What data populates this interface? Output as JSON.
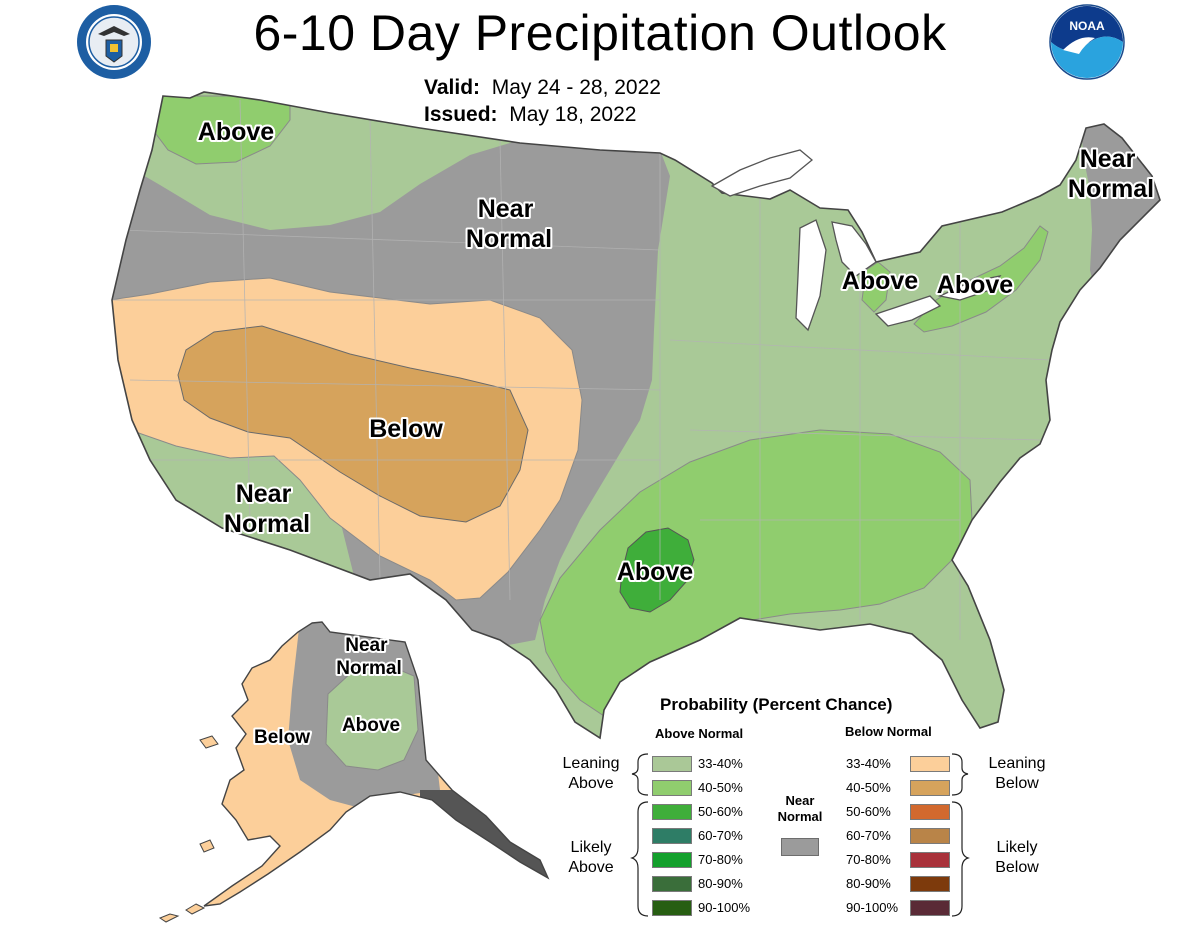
{
  "title": "6-10 Day Precipitation Outlook",
  "valid_label": "Valid:",
  "valid_value": "May 24 - 28, 2022",
  "issued_label": "Issued:",
  "issued_value": "May 18, 2022",
  "noaa_text": "NOAA",
  "region_labels": {
    "pacific_nw": "Above",
    "northern_plains": [
      "Near",
      "Normal"
    ],
    "new_england": [
      "Near",
      "Normal"
    ],
    "great_lakes_west": "Above",
    "great_lakes_east": "Above",
    "southwest_interior": "Below",
    "southern_california": [
      "Near",
      "Normal"
    ],
    "southern_plains": "Above",
    "alaska_west": "Below",
    "alaska_north": [
      "Near",
      "Normal"
    ],
    "alaska_east": "Above"
  },
  "legend": {
    "title": "Probability (Percent Chance)",
    "above_header": "Above Normal",
    "below_header": "Below Normal",
    "above": [
      {
        "label": "33-40%",
        "color": "#aac897"
      },
      {
        "label": "40-50%",
        "color": "#90cd6e"
      },
      {
        "label": "50-60%",
        "color": "#3fae3a"
      },
      {
        "label": "60-70%",
        "color": "#2e7d66"
      },
      {
        "label": "70-80%",
        "color": "#14a02c"
      },
      {
        "label": "80-90%",
        "color": "#3a6e3a"
      },
      {
        "label": "90-100%",
        "color": "#275e12"
      }
    ],
    "below": [
      {
        "label": "33-40%",
        "color": "#fccf9a"
      },
      {
        "label": "40-50%",
        "color": "#d6a35c"
      },
      {
        "label": "50-60%",
        "color": "#d2692e"
      },
      {
        "label": "60-70%",
        "color": "#b98448"
      },
      {
        "label": "70-80%",
        "color": "#a8313a"
      },
      {
        "label": "80-90%",
        "color": "#7d3a0c"
      },
      {
        "label": "90-100%",
        "color": "#5a2a36"
      }
    ],
    "leaning_above": [
      "Leaning",
      "Above"
    ],
    "likely_above": [
      "Likely",
      "Above"
    ],
    "leaning_below": [
      "Leaning",
      "Below"
    ],
    "likely_below": [
      "Likely",
      "Below"
    ],
    "near_normal": [
      "Near",
      "Normal"
    ],
    "near_normal_color": "#9b9b9b"
  }
}
